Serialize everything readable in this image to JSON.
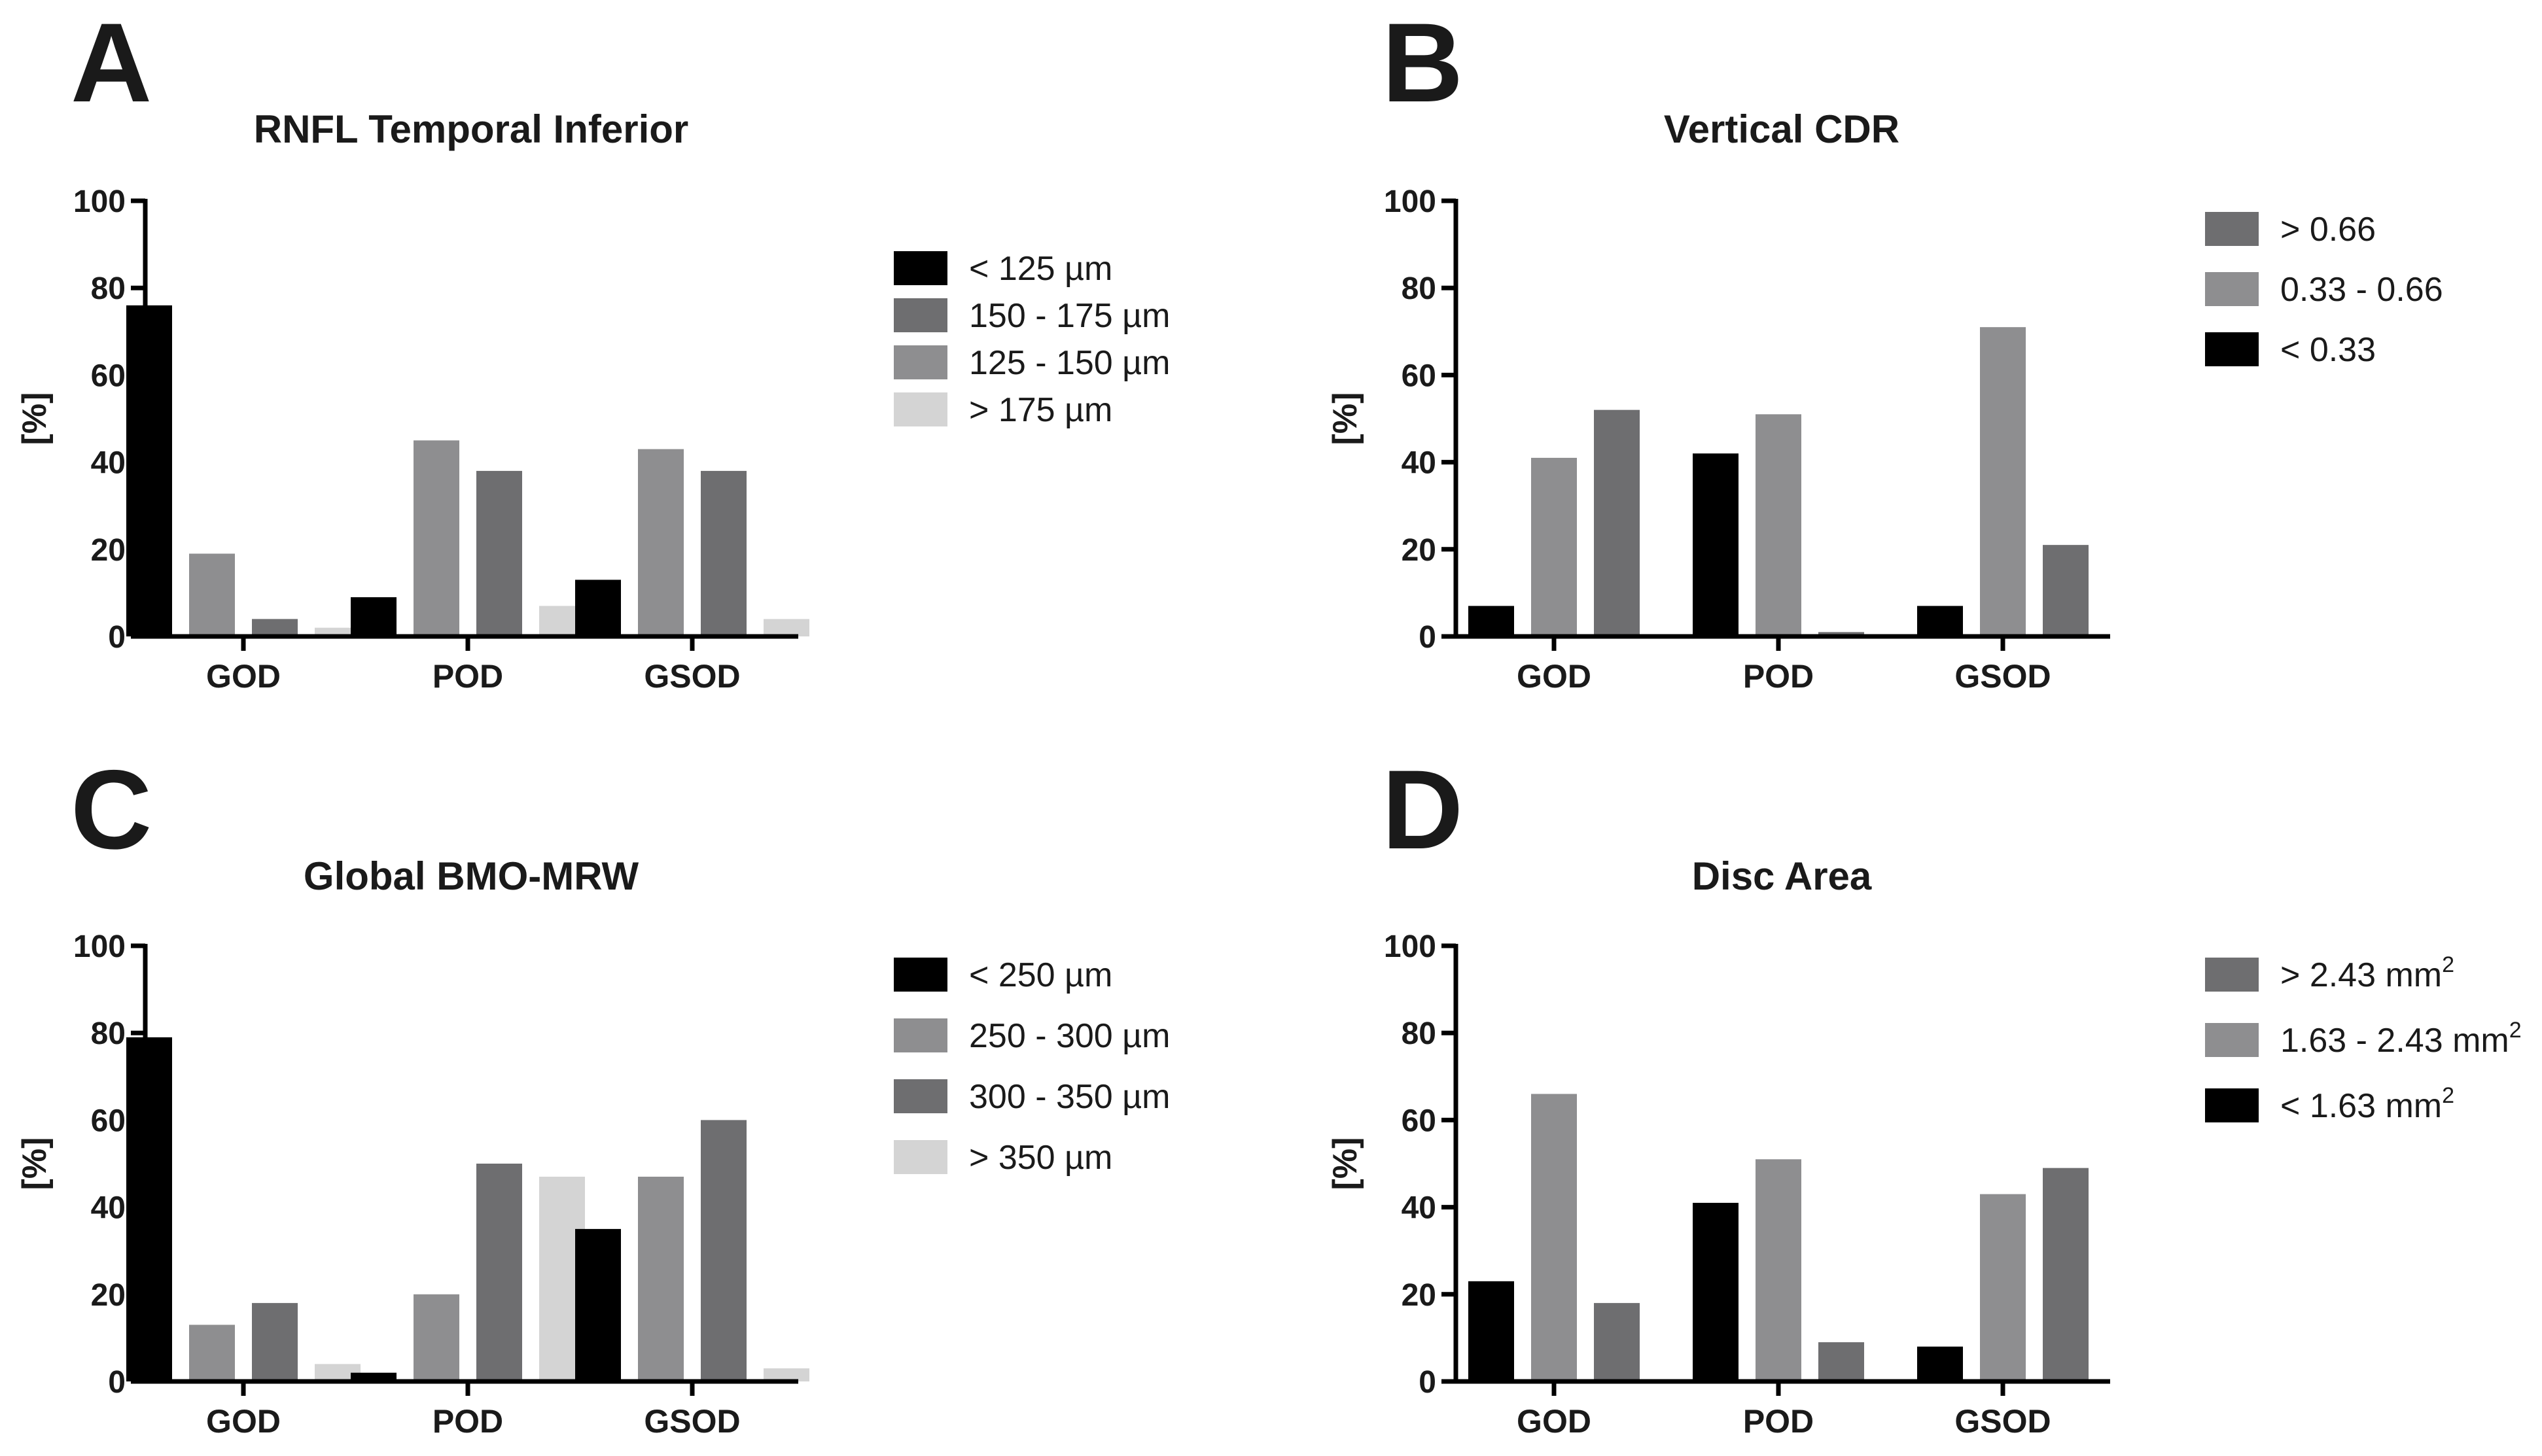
{
  "chart_data": [
    {
      "panel": "A",
      "type": "bar",
      "title": "RNFL Temporal Inferior",
      "ylabel": "[%]",
      "xlabel": "",
      "ylim": [
        0,
        100
      ],
      "yticks": [
        "0",
        "20",
        "40",
        "60",
        "80",
        "100"
      ],
      "categories": [
        "GOD",
        "POD",
        "GSOD"
      ],
      "legend_position": "right",
      "series": [
        {
          "name": "< 125 µm",
          "color": "#000000",
          "values": [
            76,
            9,
            13
          ]
        },
        {
          "name": "125 - 150 µm",
          "color": "#8e8e90",
          "values": [
            19,
            45,
            43
          ]
        },
        {
          "name": "150 - 175 µm",
          "color": "#6e6e70",
          "values": [
            4,
            38,
            38
          ]
        },
        {
          "name": "> 175 µm",
          "color": "#d4d4d4",
          "values": [
            2,
            7,
            4
          ]
        }
      ],
      "legend": [
        {
          "label": "< 125 µm",
          "sup": "",
          "color": "#000000"
        },
        {
          "label": "150 - 175 µm",
          "sup": "",
          "color": "#6e6e70"
        },
        {
          "label": "125 - 150 µm",
          "sup": "",
          "color": "#8e8e90"
        },
        {
          "label": "> 175 µm",
          "sup": "",
          "color": "#d4d4d4"
        }
      ]
    },
    {
      "panel": "B",
      "type": "bar",
      "title": "Vertical CDR",
      "ylabel": "[%]",
      "xlabel": "",
      "ylim": [
        0,
        100
      ],
      "yticks": [
        "0",
        "20",
        "40",
        "60",
        "80",
        "100"
      ],
      "categories": [
        "GOD",
        "POD",
        "GSOD"
      ],
      "legend_position": "right",
      "series": [
        {
          "name": "< 0.33",
          "color": "#000000",
          "values": [
            7,
            42,
            7
          ]
        },
        {
          "name": "0.33 - 0.66",
          "color": "#8e8e90",
          "values": [
            41,
            51,
            71
          ]
        },
        {
          "name": "> 0.66",
          "color": "#6e6e70",
          "values": [
            52,
            1,
            21
          ]
        }
      ],
      "legend": [
        {
          "label": "> 0.66",
          "sup": "",
          "color": "#6e6e70"
        },
        {
          "label": "0.33 - 0.66",
          "sup": "",
          "color": "#8e8e90"
        },
        {
          "label": "< 0.33",
          "sup": "",
          "color": "#000000"
        }
      ]
    },
    {
      "panel": "C",
      "type": "bar",
      "title": "Global BMO-MRW",
      "ylabel": "[%]",
      "xlabel": "",
      "ylim": [
        0,
        100
      ],
      "yticks": [
        "0",
        "20",
        "40",
        "60",
        "80",
        "100"
      ],
      "categories": [
        "GOD",
        "POD",
        "GSOD"
      ],
      "legend_position": "right",
      "series": [
        {
          "name": "< 250 µm",
          "color": "#000000",
          "values": [
            79,
            2,
            35
          ]
        },
        {
          "name": "250 - 300 µm",
          "color": "#8e8e90",
          "values": [
            13,
            20,
            47
          ]
        },
        {
          "name": "300 - 350 µm",
          "color": "#6e6e70",
          "values": [
            18,
            50,
            60
          ]
        },
        {
          "name": "> 350 µm",
          "color": "#d4d4d4",
          "values": [
            4,
            47,
            3
          ]
        }
      ],
      "legend": [
        {
          "label": "< 250 µm",
          "sup": "",
          "color": "#000000"
        },
        {
          "label": "250 - 300 µm",
          "sup": "",
          "color": "#8e8e90"
        },
        {
          "label": "300 - 350 µm",
          "sup": "",
          "color": "#6e6e70"
        },
        {
          "label": "> 350 µm",
          "sup": "",
          "color": "#d4d4d4"
        }
      ]
    },
    {
      "panel": "D",
      "type": "bar",
      "title": "Disc Area",
      "ylabel": "[%]",
      "xlabel": "",
      "ylim": [
        0,
        100
      ],
      "yticks": [
        "0",
        "20",
        "40",
        "60",
        "80",
        "100"
      ],
      "categories": [
        "GOD",
        "POD",
        "GSOD"
      ],
      "legend_position": "right",
      "series": [
        {
          "name": "< 1.63 mm2",
          "color": "#000000",
          "values": [
            23,
            41,
            8
          ]
        },
        {
          "name": "1.63 - 2.43 mm2",
          "color": "#8e8e90",
          "values": [
            66,
            51,
            43
          ]
        },
        {
          "name": "> 2.43 mm2",
          "color": "#6e6e70",
          "values": [
            18,
            9,
            49
          ]
        }
      ],
      "legend": [
        {
          "label": "> 2.43 mm",
          "sup": "2",
          "color": "#6e6e70"
        },
        {
          "label": "1.63 - 2.43 mm",
          "sup": "2",
          "color": "#8e8e90"
        },
        {
          "label": "< 1.63 mm",
          "sup": "2",
          "color": "#000000"
        }
      ]
    }
  ]
}
